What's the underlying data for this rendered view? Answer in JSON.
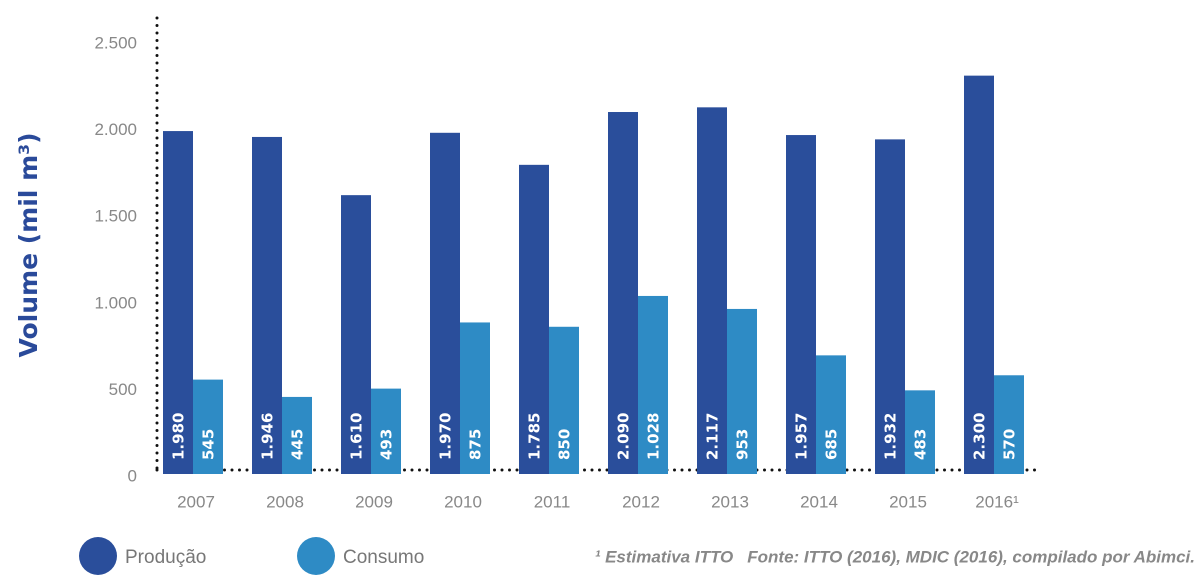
{
  "chart_data": {
    "type": "bar",
    "y_label": "Volume (mil m³)",
    "categories": [
      "2007",
      "2008",
      "2009",
      "2010",
      "2011",
      "2012",
      "2013",
      "2014",
      "2015",
      "2016¹"
    ],
    "series": [
      {
        "name": "Produção",
        "color": "#2a4e9b",
        "values": [
          1980,
          1946,
          1610,
          1970,
          1785,
          2090,
          2117,
          1957,
          1932,
          2300
        ],
        "value_labels": [
          "1.980",
          "1.946",
          "1.610",
          "1.970",
          "1.785",
          "2.090",
          "2.117",
          "1.957",
          "1.932",
          "2.300"
        ]
      },
      {
        "name": "Consumo",
        "color": "#2e8bc5",
        "values": [
          545,
          445,
          493,
          875,
          850,
          1028,
          953,
          685,
          483,
          570
        ],
        "value_labels": [
          "545",
          "445",
          "493",
          "875",
          "850",
          "1.028",
          "953",
          "685",
          "483",
          "570"
        ]
      }
    ],
    "ylim": [
      0,
      2500
    ],
    "yticks": [
      0,
      500,
      {
        "value": 1000,
        "label": "1.000"
      },
      {
        "value": 1500,
        "label": "1.500"
      },
      {
        "value": 2000,
        "label": "2.000"
      },
      {
        "value": 2500,
        "label": "2.500"
      }
    ],
    "grid": false,
    "note": "¹ Estimativa ITTO",
    "source": "Fonte: ITTO (2016), MDIC (2016), compilado por Abimci."
  }
}
